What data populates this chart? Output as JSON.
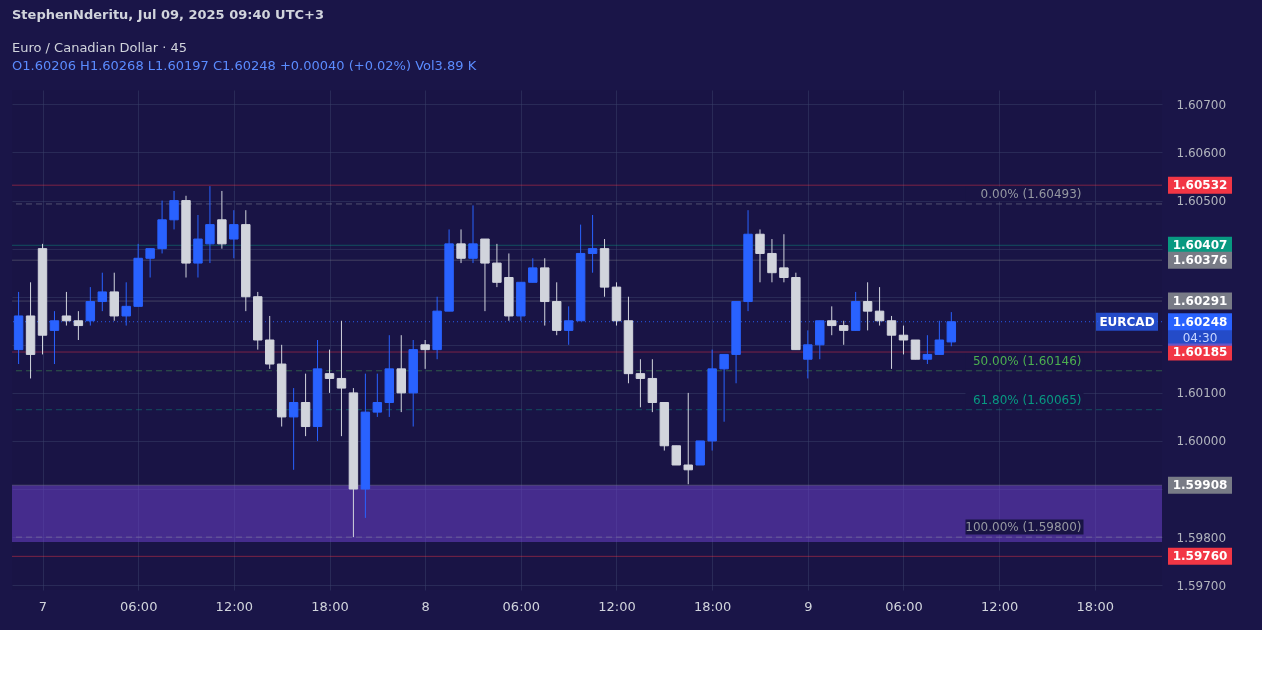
{
  "chart_data": {
    "type": "candlestick",
    "title": "Euro / Canadian Dollar · 45",
    "subtitle": "O1.60206 H1.60268 L1.60197 C1.60248 +0.00040 (+0.02%) Vol3.89 K",
    "x": [
      "2025-07-06T22:30",
      "2025-07-06T23:15",
      "2025-07-07T00:00",
      "2025-07-07T00:45",
      "2025-07-07T01:30",
      "2025-07-07T02:15",
      "2025-07-07T03:00",
      "2025-07-07T03:45",
      "2025-07-07T04:30",
      "2025-07-07T05:15",
      "2025-07-07T06:00",
      "2025-07-07T06:45",
      "2025-07-07T07:30",
      "2025-07-07T08:15",
      "2025-07-07T09:00",
      "2025-07-07T09:45",
      "2025-07-07T10:30",
      "2025-07-07T11:15",
      "2025-07-07T12:00",
      "2025-07-07T12:45",
      "2025-07-07T13:30",
      "2025-07-07T14:15",
      "2025-07-07T15:00",
      "2025-07-07T15:45",
      "2025-07-07T16:30",
      "2025-07-07T17:15",
      "2025-07-07T18:00",
      "2025-07-07T18:45",
      "2025-07-07T19:30",
      "2025-07-07T20:15",
      "2025-07-07T21:00",
      "2025-07-07T21:45",
      "2025-07-07T22:30",
      "2025-07-07T23:15",
      "2025-07-08T00:00",
      "2025-07-08T00:45",
      "2025-07-08T01:30",
      "2025-07-08T02:15",
      "2025-07-08T03:00",
      "2025-07-08T03:45",
      "2025-07-08T04:30",
      "2025-07-08T05:15",
      "2025-07-08T06:00",
      "2025-07-08T06:45",
      "2025-07-08T07:30",
      "2025-07-08T08:15",
      "2025-07-08T09:00",
      "2025-07-08T09:45",
      "2025-07-08T10:30",
      "2025-07-08T11:15",
      "2025-07-08T12:00",
      "2025-07-08T12:45",
      "2025-07-08T13:30",
      "2025-07-08T14:15",
      "2025-07-08T15:00",
      "2025-07-08T15:45",
      "2025-07-08T16:30",
      "2025-07-08T17:15",
      "2025-07-08T18:00",
      "2025-07-08T18:45",
      "2025-07-08T19:30",
      "2025-07-08T20:15",
      "2025-07-08T21:00",
      "2025-07-08T21:45",
      "2025-07-08T22:30",
      "2025-07-08T23:15",
      "2025-07-09T00:00",
      "2025-07-09T00:45",
      "2025-07-09T01:30",
      "2025-07-09T02:15",
      "2025-07-09T03:00",
      "2025-07-09T03:45",
      "2025-07-09T04:30",
      "2025-07-09T05:15",
      "2025-07-09T06:00",
      "2025-07-09T06:45",
      "2025-07-09T07:30",
      "2025-07-09T08:15",
      "2025-07-09T09:00"
    ],
    "ohlc": [
      [
        1.6019,
        1.6031,
        1.6016,
        1.6026
      ],
      [
        1.6026,
        1.6033,
        1.6013,
        1.6018
      ],
      [
        1.604,
        1.6041,
        1.6018,
        1.6022
      ],
      [
        1.6023,
        1.6027,
        1.6016,
        1.6025
      ],
      [
        1.6026,
        1.6031,
        1.6024,
        1.6025
      ],
      [
        1.6025,
        1.6027,
        1.6021,
        1.6024
      ],
      [
        1.6025,
        1.6032,
        1.6024,
        1.6029
      ],
      [
        1.6029,
        1.6035,
        1.6027,
        1.6031
      ],
      [
        1.6031,
        1.6035,
        1.6025,
        1.6026
      ],
      [
        1.6026,
        1.6033,
        1.6024,
        1.6028
      ],
      [
        1.6028,
        1.6041,
        1.6028,
        1.6038
      ],
      [
        1.6038,
        1.604,
        1.6034,
        1.604
      ],
      [
        1.604,
        1.605,
        1.6039,
        1.6046
      ],
      [
        1.6046,
        1.6052,
        1.6044,
        1.605
      ],
      [
        1.605,
        1.6051,
        1.6034,
        1.6037
      ],
      [
        1.6037,
        1.6047,
        1.6034,
        1.6042
      ],
      [
        1.6041,
        1.6053,
        1.6037,
        1.6045
      ],
      [
        1.6046,
        1.6052,
        1.604,
        1.6041
      ],
      [
        1.6042,
        1.6048,
        1.6038,
        1.6045
      ],
      [
        1.6045,
        1.6048,
        1.6027,
        1.603
      ],
      [
        1.603,
        1.6031,
        1.6019,
        1.6021
      ],
      [
        1.6021,
        1.6026,
        1.6015,
        1.6016
      ],
      [
        1.6016,
        1.602,
        1.6003,
        1.6005
      ],
      [
        1.6005,
        1.6011,
        1.5994,
        1.6008
      ],
      [
        1.6008,
        1.6014,
        1.6001,
        1.6003
      ],
      [
        1.6003,
        1.6021,
        1.6,
        1.6015
      ],
      [
        1.6014,
        1.6019,
        1.601,
        1.6013
      ],
      [
        1.6013,
        1.6025,
        1.6001,
        1.6011
      ],
      [
        1.601,
        1.6011,
        1.598,
        1.599
      ],
      [
        1.599,
        1.6014,
        1.5984,
        1.6006
      ],
      [
        1.6006,
        1.6014,
        1.6005,
        1.6008
      ],
      [
        1.6008,
        1.6022,
        1.6005,
        1.6015
      ],
      [
        1.6015,
        1.6022,
        1.6006,
        1.601
      ],
      [
        1.601,
        1.6021,
        1.6003,
        1.6019
      ],
      [
        1.602,
        1.6021,
        1.6015,
        1.6019
      ],
      [
        1.6019,
        1.603,
        1.6017,
        1.6027
      ],
      [
        1.6027,
        1.6044,
        1.6027,
        1.6041
      ],
      [
        1.6041,
        1.6044,
        1.6037,
        1.6038
      ],
      [
        1.6038,
        1.6049,
        1.6037,
        1.6041
      ],
      [
        1.6042,
        1.6042,
        1.6027,
        1.6037
      ],
      [
        1.6037,
        1.6041,
        1.6032,
        1.6033
      ],
      [
        1.6034,
        1.6039,
        1.6025,
        1.6026
      ],
      [
        1.6026,
        1.6033,
        1.6025,
        1.6033
      ],
      [
        1.6033,
        1.6038,
        1.6033,
        1.6036
      ],
      [
        1.6036,
        1.6038,
        1.6024,
        1.6029
      ],
      [
        1.6029,
        1.6033,
        1.6022,
        1.6023
      ],
      [
        1.6023,
        1.6028,
        1.602,
        1.6025
      ],
      [
        1.6025,
        1.6045,
        1.6025,
        1.6039
      ],
      [
        1.6039,
        1.6047,
        1.6035,
        1.604
      ],
      [
        1.604,
        1.6042,
        1.603,
        1.6032
      ],
      [
        1.6032,
        1.6033,
        1.6024,
        1.6025
      ],
      [
        1.6025,
        1.603,
        1.6012,
        1.6014
      ],
      [
        1.6014,
        1.6017,
        1.6007,
        1.6013
      ],
      [
        1.6013,
        1.6017,
        1.6006,
        1.6008
      ],
      [
        1.6008,
        1.6008,
        1.5998,
        1.5999
      ],
      [
        1.5999,
        1.5999,
        1.5995,
        1.5995
      ],
      [
        1.5995,
        1.601,
        1.5991,
        1.5994
      ],
      [
        1.5995,
        1.6,
        1.5995,
        1.6
      ],
      [
        1.6,
        1.6019,
        1.5998,
        1.6015
      ],
      [
        1.6015,
        1.6018,
        1.6004,
        1.6018
      ],
      [
        1.6018,
        1.6029,
        1.6012,
        1.6029
      ],
      [
        1.6029,
        1.6048,
        1.6027,
        1.6043
      ],
      [
        1.6043,
        1.6044,
        1.6033,
        1.6039
      ],
      [
        1.6039,
        1.6042,
        1.6033,
        1.6035
      ],
      [
        1.6036,
        1.6043,
        1.6033,
        1.6034
      ],
      [
        1.6034,
        1.6035,
        1.6019,
        1.6019
      ],
      [
        1.6017,
        1.6023,
        1.6013,
        1.602
      ],
      [
        1.602,
        1.6025,
        1.6017,
        1.6025
      ],
      [
        1.6025,
        1.6028,
        1.6022,
        1.6024
      ],
      [
        1.6024,
        1.6025,
        1.602,
        1.6023
      ],
      [
        1.6023,
        1.6031,
        1.6023,
        1.6029
      ],
      [
        1.6029,
        1.6033,
        1.6023,
        1.6027
      ],
      [
        1.6027,
        1.6032,
        1.6024,
        1.6025
      ],
      [
        1.6025,
        1.6026,
        1.6015,
        1.6022
      ],
      [
        1.6022,
        1.6024,
        1.6018,
        1.6021
      ],
      [
        1.6021,
        1.6021,
        1.6017,
        1.6017
      ],
      [
        1.6017,
        1.6022,
        1.6016,
        1.6018
      ],
      [
        1.6018,
        1.6025,
        1.6018,
        1.6021
      ],
      [
        1.60206,
        1.60268,
        1.60197,
        1.60248
      ]
    ],
    "colors": [
      "#2962ff",
      "#d1d4dc",
      "#d1d4dc",
      "#2962ff",
      "#d1d4dc",
      "#d1d4dc",
      "#2962ff",
      "#2962ff",
      "#d1d4dc",
      "#2962ff",
      "#2962ff",
      "#2962ff",
      "#2962ff",
      "#2962ff",
      "#d1d4dc",
      "#2962ff",
      "#2962ff",
      "#d1d4dc",
      "#2962ff",
      "#d1d4dc",
      "#d1d4dc",
      "#d1d4dc",
      "#d1d4dc",
      "#2962ff",
      "#d1d4dc",
      "#2962ff",
      "#d1d4dc",
      "#d1d4dc",
      "#d1d4dc",
      "#2962ff",
      "#2962ff",
      "#2962ff",
      "#d1d4dc",
      "#2962ff",
      "#d1d4dc",
      "#2962ff",
      "#2962ff",
      "#d1d4dc",
      "#2962ff",
      "#d1d4dc",
      "#d1d4dc",
      "#d1d4dc",
      "#2962ff",
      "#2962ff",
      "#d1d4dc",
      "#d1d4dc",
      "#2962ff",
      "#2962ff",
      "#2962ff",
      "#d1d4dc",
      "#d1d4dc",
      "#d1d4dc",
      "#d1d4dc",
      "#d1d4dc",
      "#d1d4dc",
      "#d1d4dc",
      "#d1d4dc",
      "#2962ff",
      "#2962ff",
      "#2962ff",
      "#2962ff",
      "#2962ff",
      "#d1d4dc",
      "#d1d4dc",
      "#d1d4dc",
      "#d1d4dc",
      "#2962ff",
      "#2962ff",
      "#d1d4dc",
      "#d1d4dc",
      "#2962ff",
      "#d1d4dc",
      "#d1d4dc",
      "#d1d4dc",
      "#d1d4dc",
      "#d1d4dc",
      "#2962ff",
      "#2962ff",
      "#2962ff"
    ],
    "xlim": [
      "2025-07-06T22:24",
      "2025-07-09T21:54"
    ],
    "xticks": [
      {
        "value": "2025-07-07",
        "label": "7"
      },
      {
        "value": "2025-07-07T06:00",
        "label": "06:00"
      },
      {
        "value": "2025-07-07T12:00",
        "label": "12:00"
      },
      {
        "value": "2025-07-07T18:00",
        "label": "18:00"
      },
      {
        "value": "2025-07-08",
        "label": "8"
      },
      {
        "value": "2025-07-08T06:00",
        "label": "06:00"
      },
      {
        "value": "2025-07-08T12:00",
        "label": "12:00"
      },
      {
        "value": "2025-07-08T18:00",
        "label": "18:00"
      },
      {
        "value": "2025-07-09",
        "label": "9"
      },
      {
        "value": "2025-07-09T06:00",
        "label": "06:00"
      },
      {
        "value": "2025-07-09T12:00",
        "label": "12:00"
      },
      {
        "value": "2025-07-09T18:00",
        "label": "18:00"
      }
    ],
    "ylim": [
      1.5969,
      1.6073
    ],
    "yticks": [
      {
        "value": 1.597,
        "label": "1.59700"
      },
      {
        "value": 1.598,
        "label": "1.59800"
      },
      {
        "value": 1.599,
        "label": null
      },
      {
        "value": 1.6,
        "label": "1.60000"
      },
      {
        "value": 1.601,
        "label": "1.60100"
      },
      {
        "value": 1.602,
        "label": null
      },
      {
        "value": 1.603,
        "label": null
      },
      {
        "value": 1.604,
        "label": null
      },
      {
        "value": 1.605,
        "label": "1.60500"
      },
      {
        "value": 1.606,
        "label": "1.60600"
      },
      {
        "value": 1.607,
        "label": "1.60700"
      }
    ],
    "grid": true,
    "bands": [
      {
        "axis": "y",
        "from": 1.5979,
        "to": 1.59908,
        "color": "#6a3fc8"
      }
    ],
    "ref_lines": [
      {
        "axis": "y",
        "value": 1.60532,
        "label": "1.60532",
        "color": "#f23645",
        "line_style": "solid"
      },
      {
        "axis": "y",
        "value": 1.60407,
        "label": "1.60407",
        "color": "#089981",
        "line_style": "solid"
      },
      {
        "axis": "y",
        "value": 1.60376,
        "label": "1.60376",
        "color": "#787b86",
        "line_style": "solid"
      },
      {
        "axis": "y",
        "value": 1.60291,
        "label": "1.60291",
        "color": "#787b86",
        "line_style": "solid"
      },
      {
        "axis": "y",
        "value": 1.60248,
        "label": "1.60248",
        "color": "#2962ff",
        "line_style": "dotted"
      },
      {
        "axis": "y",
        "value": 1.60185,
        "label": "1.60185",
        "color": "#f23645",
        "line_style": "solid"
      },
      {
        "axis": "y",
        "value": 1.59908,
        "label": "1.59908",
        "color": "#787b86",
        "line_style": "solid"
      },
      {
        "axis": "y",
        "value": 1.5976,
        "label": "1.59760",
        "color": "#f23645",
        "line_style": "solid"
      },
      {
        "axis": "y",
        "value": 1.60493,
        "label": "0.00% (1.60493)",
        "color": "#9598a1",
        "line_style": "dashed"
      },
      {
        "axis": "y",
        "value": 1.60146,
        "label": "50.00% (1.60146)",
        "color": "#4caf50",
        "line_style": "dashed"
      },
      {
        "axis": "y",
        "value": 1.60065,
        "label": "61.80% (1.60065)",
        "color": "#089981",
        "line_style": "dashed"
      },
      {
        "axis": "y",
        "value": 1.598,
        "label": "100.00% (1.59800)",
        "color": "#9598a1",
        "line_style": "dashed"
      }
    ],
    "annotations": [
      "StephenNderitu, Jul 09, 2025 09:40 UTC+3",
      "EURCAD",
      "04:30"
    ]
  }
}
